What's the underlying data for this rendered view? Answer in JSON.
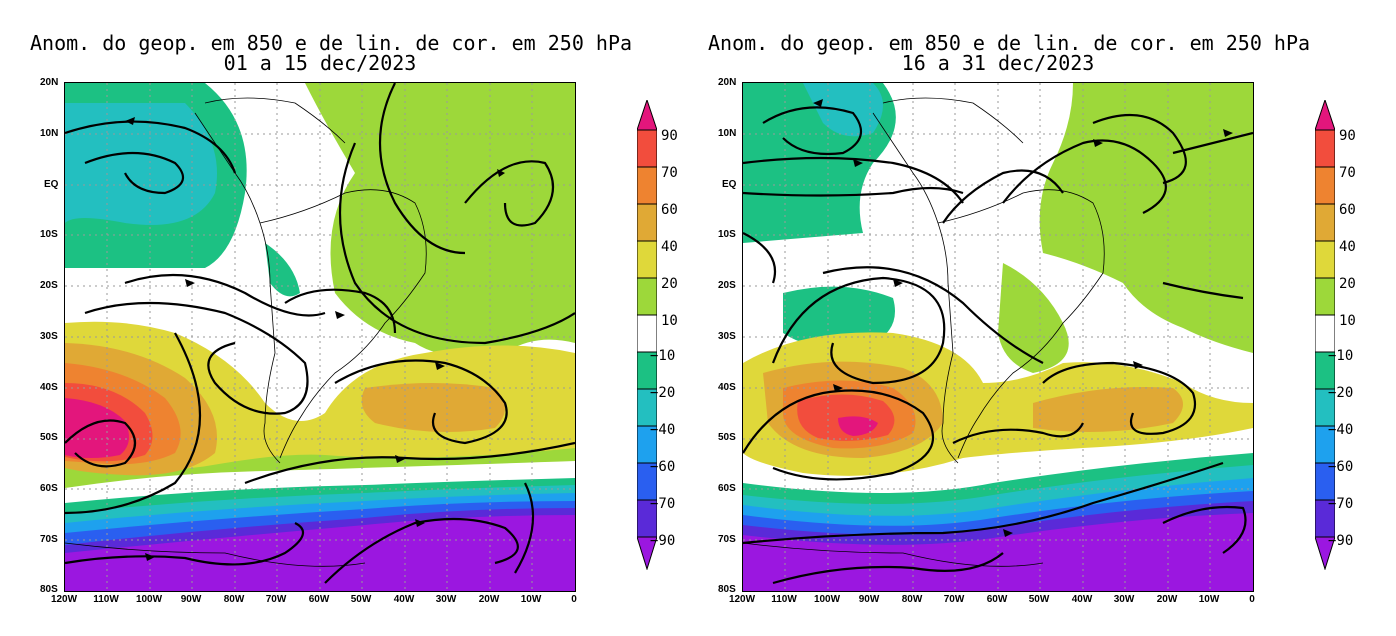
{
  "panels": [
    {
      "title_line1": "Anom. do geop. em 850 e de lin. de cor. em 250 hPa",
      "title_line2": "01 a 15 dec/2023"
    },
    {
      "title_line1": "Anom. do geop. em 850 e de lin. de cor. em 250 hPa",
      "title_line2": "16 a 31 dec/2023"
    }
  ],
  "lat_labels": [
    "20N",
    "10N",
    "EQ",
    "10S",
    "20S",
    "30S",
    "40S",
    "50S",
    "60S",
    "70S",
    "80S"
  ],
  "lon_labels": [
    "120W",
    "110W",
    "100W",
    "90W",
    "80W",
    "70W",
    "60W",
    "50W",
    "40W",
    "30W",
    "20W",
    "10W",
    "0"
  ],
  "colorbar": {
    "labels": [
      "90",
      "70",
      "60",
      "40",
      "20",
      "10",
      "−10",
      "−20",
      "−40",
      "−60",
      "−70",
      "−90"
    ],
    "colors": [
      "#e3167c",
      "#f24d3d",
      "#ee8330",
      "#e0a935",
      "#dfd83a",
      "#9dd83a",
      "#ffffff",
      "#1cc183",
      "#23bfc0",
      "#1ea1ee",
      "#2a5ff0",
      "#5a2ad8",
      "#9b17e0"
    ]
  },
  "map_colors": {
    "magenta": "#e3167c",
    "red": "#f24d3d",
    "orange": "#ee8330",
    "darkyellow": "#e0a935",
    "yellow": "#dfd83a",
    "lightgreen": "#9dd83a",
    "white": "#ffffff",
    "green": "#1cc183",
    "teal": "#23bfc0",
    "lightblue": "#1ea1ee",
    "blue": "#2a5ff0",
    "violet": "#5a2ad8",
    "purple": "#9b17e0"
  }
}
